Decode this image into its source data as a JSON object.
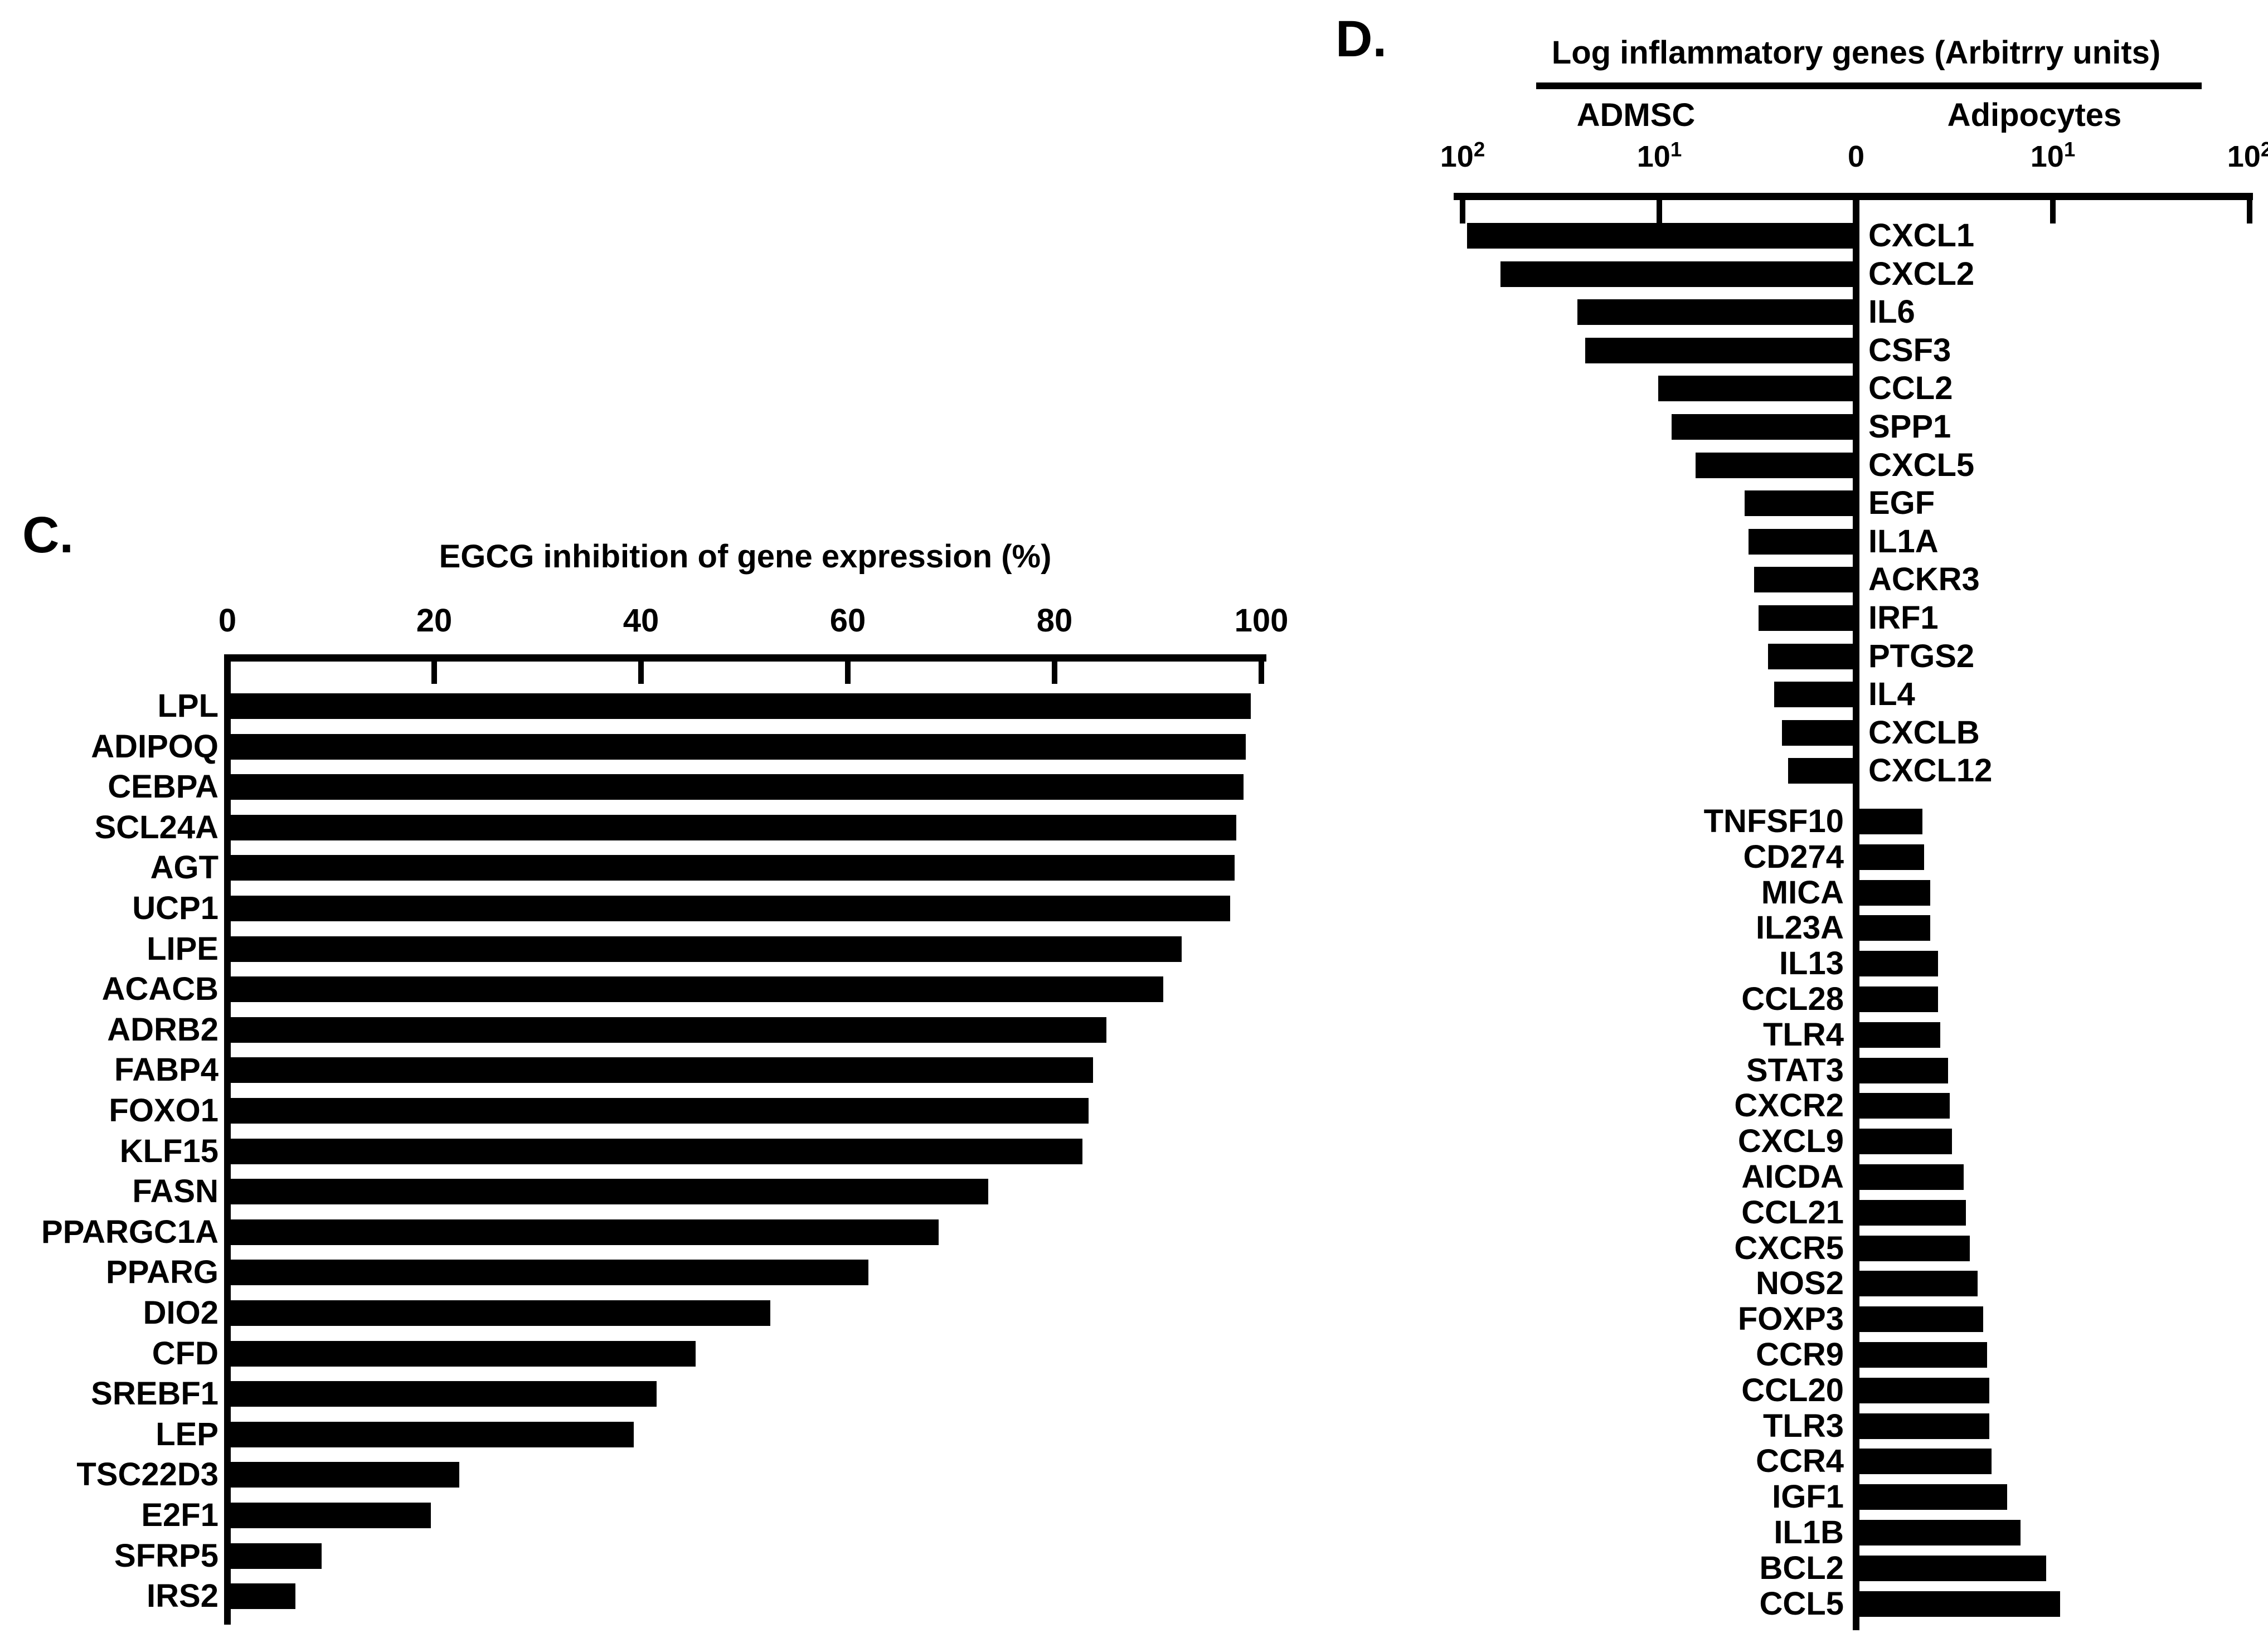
{
  "panels": {
    "c": {
      "letter": "C."
    },
    "d": {
      "letter": "D."
    }
  },
  "chart_data": [
    {
      "panel": "C",
      "type": "bar",
      "orientation": "horizontal",
      "title": "EGCG inhibition of gene expression (%)",
      "xlabel": "EGCG inhibition of gene expression (%)",
      "xlim": [
        0,
        100
      ],
      "x_ticks": [
        0,
        20,
        40,
        60,
        80,
        100
      ],
      "grid": false,
      "legend": false,
      "bar_color": "#000000",
      "categories": [
        "LPL",
        "ADIPOQ",
        "CEBPA",
        "SCL24A",
        "AGT",
        "UCP1",
        "LIPE",
        "ACACB",
        "ADRB2",
        "FABP4",
        "FOXO1",
        "KLF15",
        "FASN",
        "PPARGC1A",
        "PPARG",
        "DIO2",
        "CFD",
        "SREBF1",
        "LEP",
        "TSC22D3",
        "E2F1",
        "SFRP5",
        "IRS2"
      ],
      "values": [
        99,
        98.5,
        98.3,
        97.6,
        97.4,
        97,
        92.3,
        90.5,
        85,
        83.7,
        83.3,
        82.7,
        73.6,
        68.8,
        62,
        52.5,
        45.3,
        41.5,
        39.3,
        22.4,
        19.7,
        9.1,
        6.6
      ]
    },
    {
      "panel": "D",
      "type": "bar",
      "orientation": "horizontal-diverging",
      "title": "Log inflammatory genes (Arbitrry units)",
      "axis_scale": "log10 arbitrary units, mirrored decades from center 0",
      "x_tick_labels": [
        "10^2",
        "10^1",
        "0",
        "10^1",
        "10^2"
      ],
      "grid": false,
      "legend": false,
      "bar_color": "#000000",
      "series": [
        {
          "name": "ADMSC",
          "side": "left",
          "categories": [
            "CXCL1",
            "CXCL2",
            "IL6",
            "CSF3",
            "CCL2",
            "SPP1",
            "CXCL5",
            "EGF",
            "IL1A",
            "ACKR3",
            "IRF1",
            "PTGS2",
            "IL4",
            "CXCLB",
            "CXCL12"
          ],
          "log10_values": [
            1.96,
            1.79,
            1.4,
            1.36,
            0.99,
            0.92,
            0.8,
            0.55,
            0.53,
            0.5,
            0.48,
            0.43,
            0.4,
            0.36,
            0.33
          ]
        },
        {
          "name": "Adipocytes",
          "side": "right",
          "categories": [
            "TNFSF10",
            "CD274",
            "MICA",
            "IL23A",
            "IL13",
            "CCL28",
            "TLR4",
            "STAT3",
            "CXCR2",
            "CXCL9",
            "AICDA",
            "CCL21",
            "CXCR5",
            "NOS2",
            "FOXP3",
            "CCR9",
            "CCL20",
            "TLR3",
            "CCR4",
            "IGF1",
            "IL1B",
            "BCL2",
            "CCL5"
          ],
          "log10_values": [
            0.32,
            0.33,
            0.36,
            0.36,
            0.4,
            0.4,
            0.41,
            0.45,
            0.46,
            0.47,
            0.53,
            0.54,
            0.56,
            0.6,
            0.63,
            0.65,
            0.66,
            0.66,
            0.67,
            0.75,
            0.82,
            0.95,
            1.02
          ]
        }
      ]
    }
  ]
}
